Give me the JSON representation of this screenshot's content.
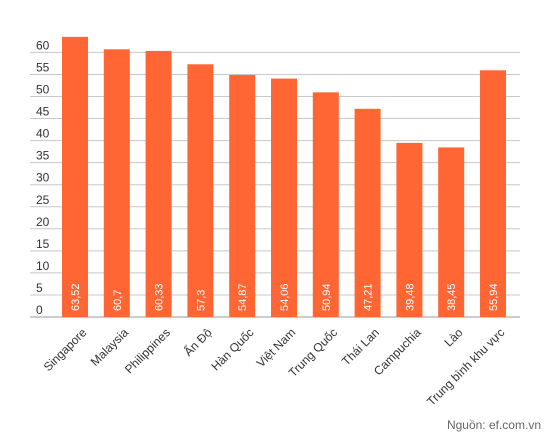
{
  "chart_data": {
    "type": "bar",
    "categories": [
      "Singapore",
      "Malaysia",
      "Philippines",
      "Ấn Độ",
      "Hàn Quốc",
      "Việt Nam",
      "Trung Quốc",
      "Thái Lan",
      "Campuchia",
      "Lào",
      "Trung bình khu vực"
    ],
    "values": [
      63.52,
      60.7,
      60.33,
      57.3,
      54.87,
      54.06,
      50.94,
      47.21,
      39.48,
      38.45,
      55.94
    ],
    "data_labels": [
      "63,52",
      "60,7",
      "60,33",
      "57,3",
      "54,87",
      "54,06",
      "50,94",
      "47,21",
      "39,48",
      "38,45",
      "55,94"
    ],
    "y_ticks": [
      0,
      5,
      10,
      15,
      20,
      25,
      30,
      35,
      40,
      45,
      50,
      55,
      60
    ],
    "ylim": [
      0,
      65
    ],
    "title": "",
    "xlabel": "",
    "ylabel": "",
    "grid": true,
    "legend": "none",
    "bar_color": "#ff6633",
    "grid_color": "#c8c8c8",
    "label_color": "#333333"
  },
  "source": "Nguồn: ef.com.vn"
}
